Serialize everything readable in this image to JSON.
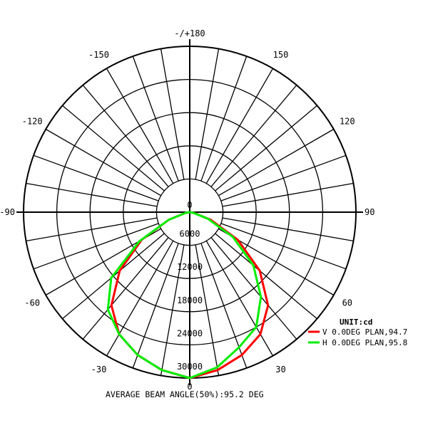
{
  "chart_data": {
    "type": "polar",
    "unit_label": "UNIT:cd",
    "caption": "AVERAGE BEAM ANGLE(50%):95.2 DEG",
    "radial_ticks": [
      "0",
      "6000",
      "12000",
      "18000",
      "24000",
      "30000"
    ],
    "radial_values": [
      0,
      6000,
      12000,
      18000,
      24000,
      30000
    ],
    "rmax": 30000,
    "angle_step": 10,
    "angle_labels": [
      {
        "angle": 0,
        "text": "0"
      },
      {
        "angle": 30,
        "text": "30"
      },
      {
        "angle": -30,
        "text": "-30"
      },
      {
        "angle": 60,
        "text": "60"
      },
      {
        "angle": -60,
        "text": "-60"
      },
      {
        "angle": 90,
        "text": "90"
      },
      {
        "angle": -90,
        "text": "-90"
      },
      {
        "angle": 120,
        "text": "120"
      },
      {
        "angle": -120,
        "text": "-120"
      },
      {
        "angle": 150,
        "text": "150"
      },
      {
        "angle": -150,
        "text": "-150"
      },
      {
        "angle": 180,
        "text": "-/+180"
      }
    ],
    "series": [
      {
        "name": "V 0.0DEG PLAN,94.7",
        "color": "#ff0000",
        "points": [
          {
            "angle": 0,
            "value": 30000
          },
          {
            "angle": 10,
            "value": 29000
          },
          {
            "angle": 20,
            "value": 27500
          },
          {
            "angle": 30,
            "value": 25500
          },
          {
            "angle": 40,
            "value": 22000
          },
          {
            "angle": 50,
            "value": 16500
          },
          {
            "angle": 60,
            "value": 10000
          },
          {
            "angle": 70,
            "value": 4000
          },
          {
            "angle": 80,
            "value": 800
          },
          {
            "angle": 90,
            "value": 0
          },
          {
            "angle": -10,
            "value": 29000
          },
          {
            "angle": -20,
            "value": 27500
          },
          {
            "angle": -30,
            "value": 25500
          },
          {
            "angle": -40,
            "value": 22000
          },
          {
            "angle": -50,
            "value": 16500
          },
          {
            "angle": -60,
            "value": 10000
          },
          {
            "angle": -70,
            "value": 4000
          },
          {
            "angle": -80,
            "value": 800
          },
          {
            "angle": -90,
            "value": 0
          }
        ]
      },
      {
        "name": "H 0.0DEG PLAN,95.8",
        "color": "#00ee00",
        "points": [
          {
            "angle": 0,
            "value": 30000
          },
          {
            "angle": 10,
            "value": 28500
          },
          {
            "angle": 20,
            "value": 26000
          },
          {
            "angle": 30,
            "value": 24000
          },
          {
            "angle": 40,
            "value": 20000
          },
          {
            "angle": 50,
            "value": 15000
          },
          {
            "angle": 60,
            "value": 9000
          },
          {
            "angle": 70,
            "value": 3500
          },
          {
            "angle": 80,
            "value": 600
          },
          {
            "angle": 90,
            "value": 0
          },
          {
            "angle": -10,
            "value": 29000
          },
          {
            "angle": -20,
            "value": 27500
          },
          {
            "angle": -30,
            "value": 25500
          },
          {
            "angle": -40,
            "value": 23000
          },
          {
            "angle": -50,
            "value": 18500
          },
          {
            "angle": -60,
            "value": 10500
          },
          {
            "angle": -70,
            "value": 4000
          },
          {
            "angle": -80,
            "value": 700
          },
          {
            "angle": -90,
            "value": 0
          }
        ]
      }
    ]
  }
}
